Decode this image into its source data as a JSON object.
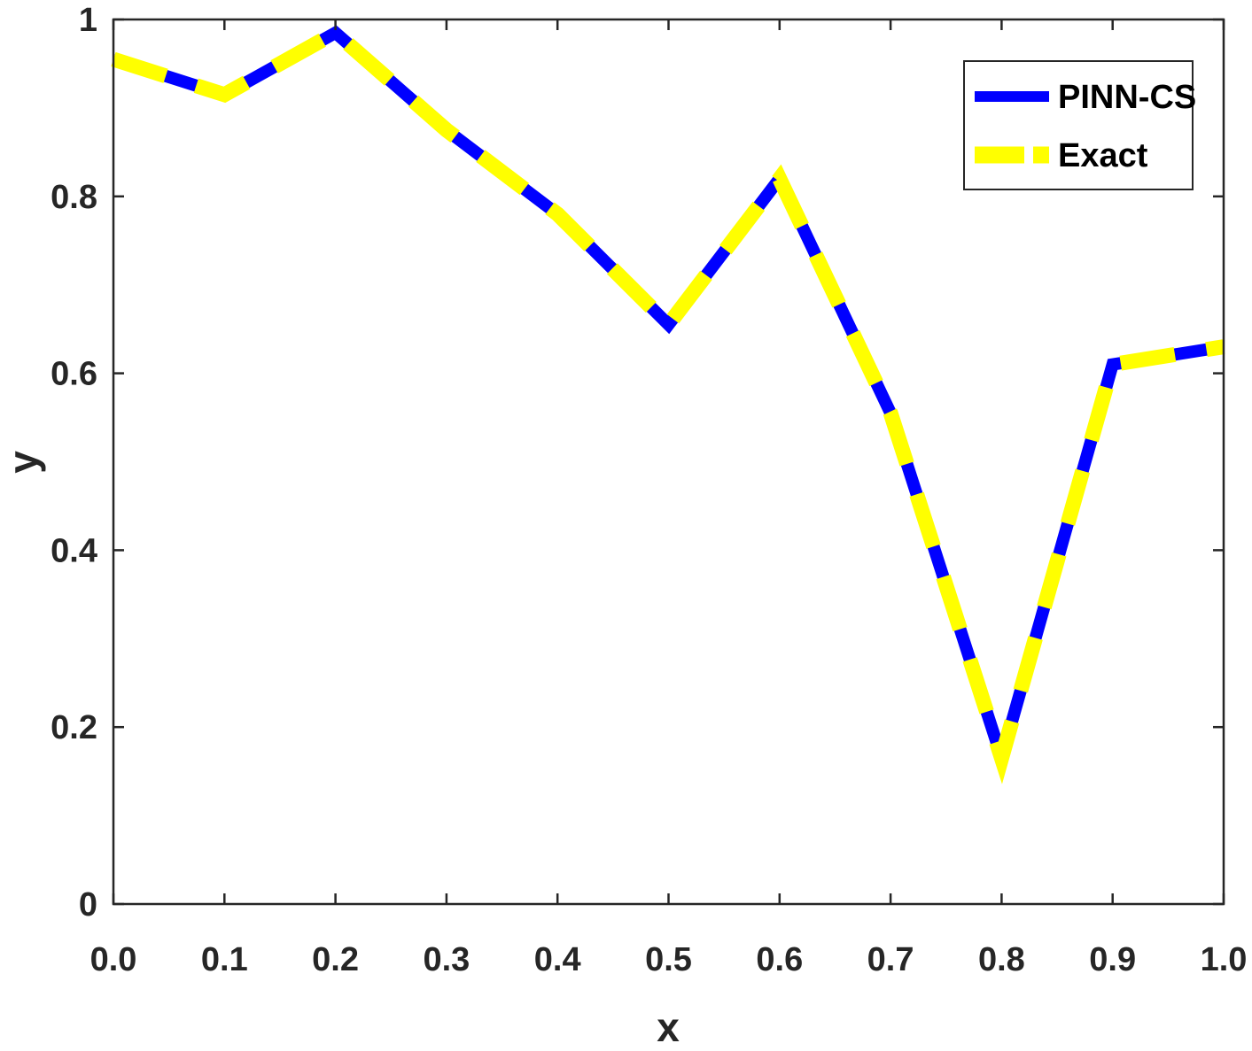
{
  "chart_data": {
    "type": "line",
    "title": "",
    "xlabel": "x",
    "ylabel": "y",
    "xlim": [
      0,
      1
    ],
    "ylim": [
      0,
      1
    ],
    "x_ticks": [
      "0.0",
      "0.1",
      "0.2",
      "0.3",
      "0.4",
      "0.5",
      "0.6",
      "0.7",
      "0.8",
      "0.9",
      "1.0"
    ],
    "y_ticks": [
      "0",
      "0.2",
      "0.4",
      "0.6",
      "0.8",
      "1"
    ],
    "grid": false,
    "legend_position": "top-right",
    "x": [
      0.0,
      0.1,
      0.2,
      0.3,
      0.4,
      0.5,
      0.6,
      0.7,
      0.8,
      0.9,
      1.0
    ],
    "series": [
      {
        "name": "PINN-CS",
        "color": "#0000ff",
        "style": "solid",
        "values": [
          0.955,
          0.915,
          0.985,
          0.875,
          0.78,
          0.655,
          0.82,
          0.555,
          0.165,
          0.61,
          0.63
        ]
      },
      {
        "name": "Exact",
        "color": "#ffff00",
        "style": "dashed",
        "values": [
          0.955,
          0.915,
          0.985,
          0.875,
          0.78,
          0.655,
          0.82,
          0.555,
          0.165,
          0.61,
          0.63
        ]
      }
    ]
  }
}
